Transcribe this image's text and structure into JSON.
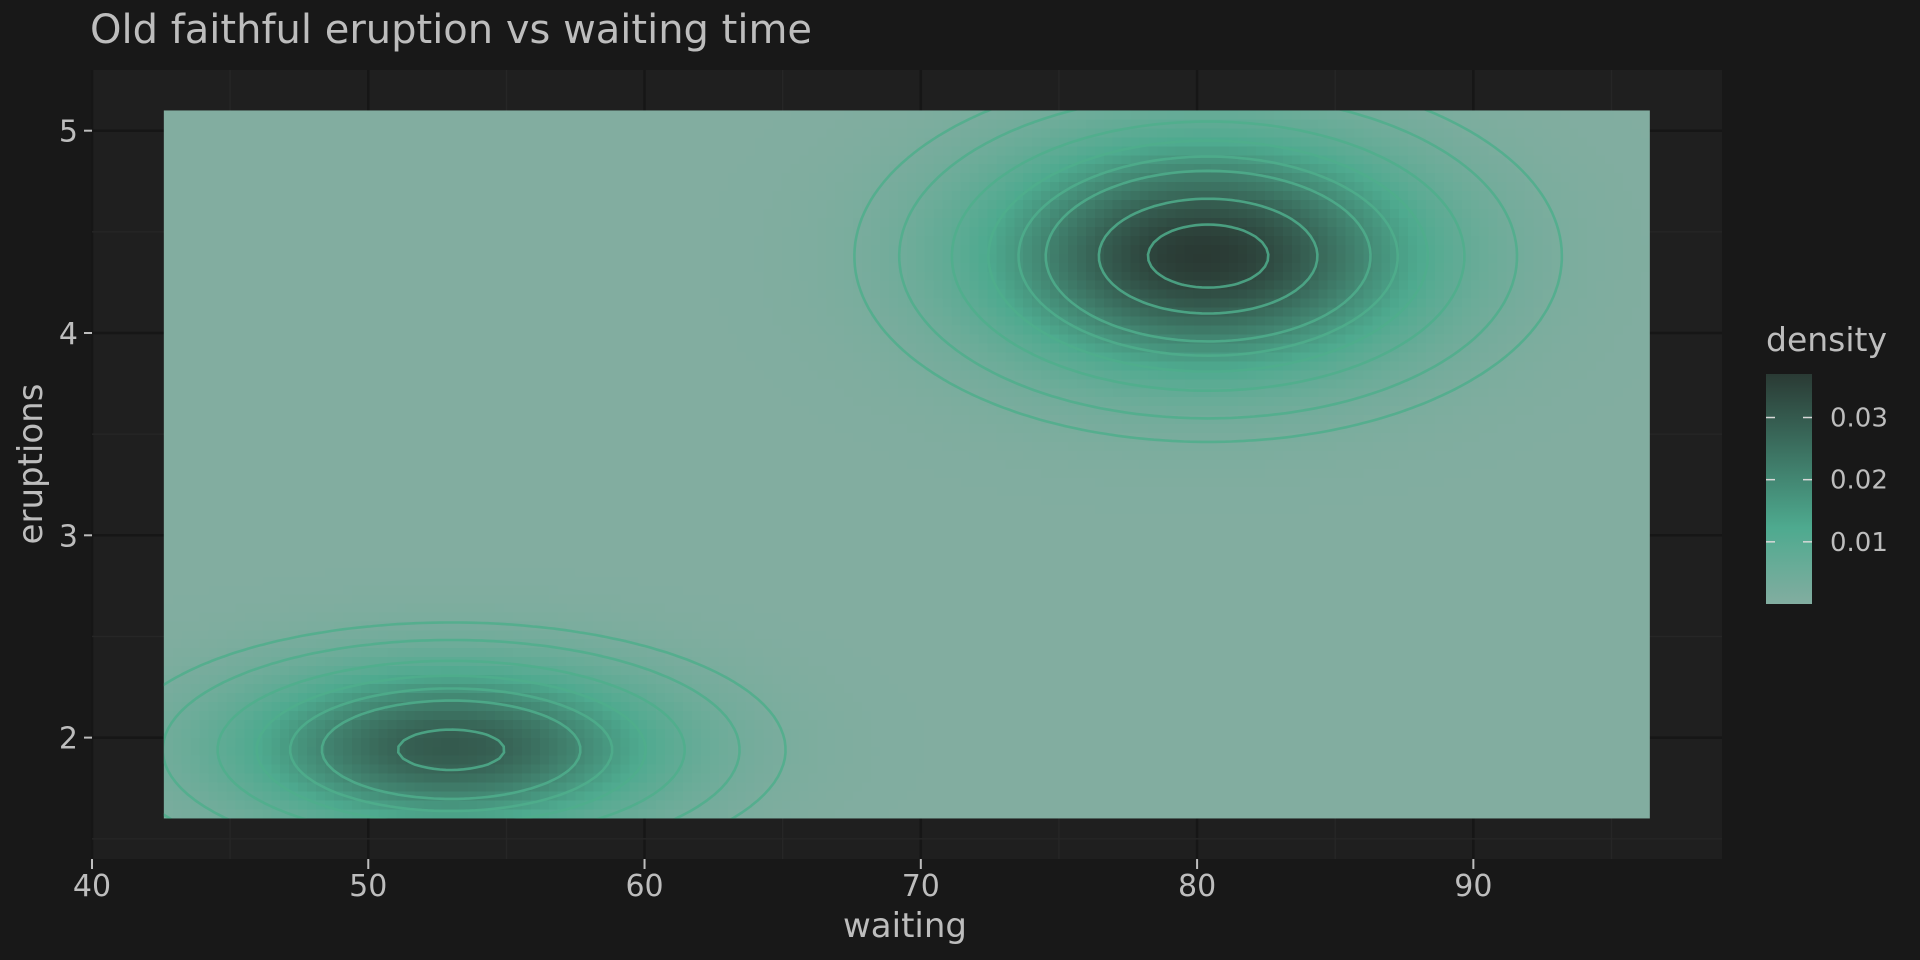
{
  "chart_data": {
    "type": "heatmap",
    "title": "Old faithful eruption vs waiting time",
    "xlabel": "waiting",
    "ylabel": "eruptions",
    "xlim": [
      40,
      99
    ],
    "ylim": [
      1.4,
      5.3
    ],
    "x_ticks": [
      40,
      50,
      60,
      70,
      80,
      90
    ],
    "y_ticks": [
      2,
      3,
      4,
      5
    ],
    "data_extent": {
      "x": [
        42.6,
        96.4
      ],
      "y": [
        1.6,
        5.1
      ]
    },
    "density_modes": [
      {
        "waiting": 80.4,
        "eruptions": 4.38,
        "peak_density": 0.037
      },
      {
        "waiting": 53.0,
        "eruptions": 1.94,
        "peak_density": 0.03
      }
    ],
    "contour_levels": [
      0.002,
      0.004,
      0.008,
      0.012,
      0.016,
      0.02,
      0.028,
      0.034
    ],
    "legend": {
      "title": "density",
      "position": "right",
      "ticks": [
        "0.01",
        "0.02",
        "0.03"
      ],
      "tick_values": [
        0.01,
        0.02,
        0.03
      ],
      "range": [
        0.0,
        0.037
      ]
    },
    "grid": true,
    "colors": {
      "low": "#82ada0",
      "mid": "#4eaa8f",
      "high": "#2a3a34",
      "contour": "#4fae8c",
      "panel": "#1f1f1f",
      "background": "#181818",
      "text": "#bdbdbd"
    }
  }
}
